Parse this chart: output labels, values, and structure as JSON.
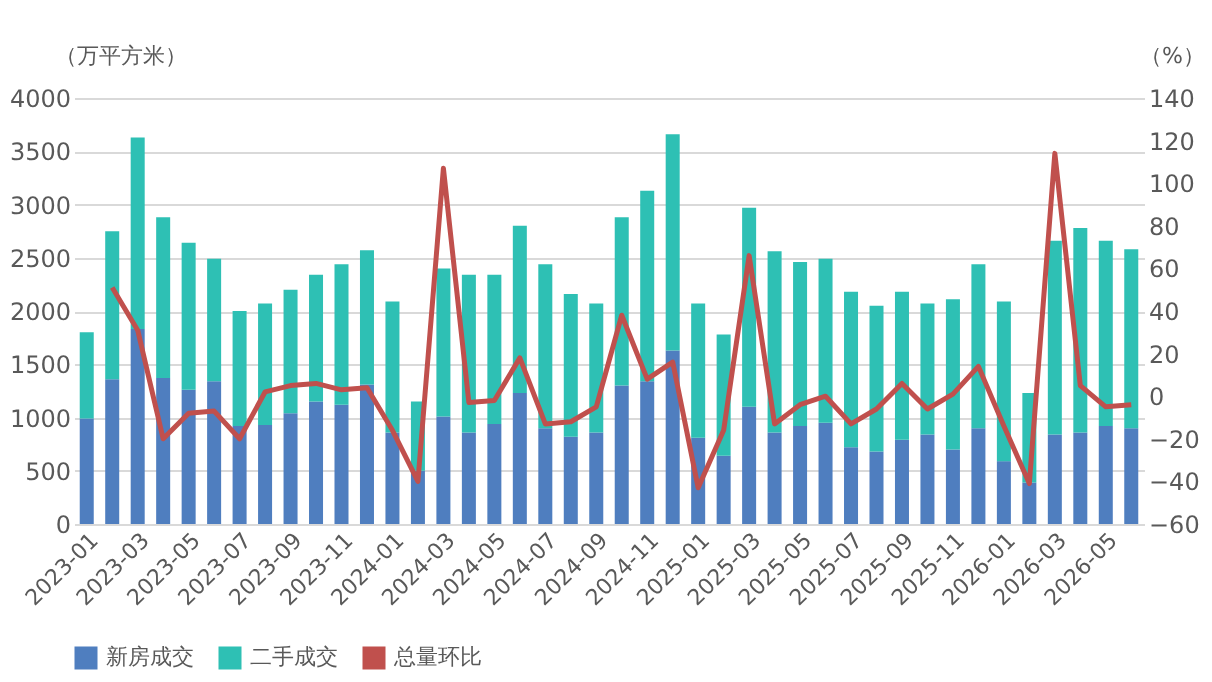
{
  "chart_data": {
    "type": "bar",
    "stacked": true,
    "ylabel": "（万平方米）",
    "y2label": "（%）",
    "categories": [
      "2023-01",
      null,
      "2023-03",
      null,
      "2023-05",
      null,
      "2023-07",
      null,
      "2023-09",
      null,
      "2023-11",
      null,
      "2024-01",
      null,
      "2024-03",
      null,
      "2024-05",
      null,
      "2024-07",
      null,
      "2024-09",
      null,
      "2024-11",
      null,
      "2025-01",
      null,
      "2025-03",
      null,
      "2025-05",
      null,
      "2025-07",
      null,
      "2025-09",
      null,
      "2025-11",
      null,
      "2026-01",
      null,
      "2026-03",
      null,
      "2026-05",
      null
    ],
    "series": [
      {
        "name": "新房成交",
        "color": "#4f7ebf",
        "values": [
          990,
          1360,
          1830,
          1370,
          1260,
          1340,
          920,
          930,
          1040,
          1150,
          1120,
          1310,
          860,
          500,
          1010,
          860,
          940,
          1230,
          900,
          820,
          860,
          1300,
          1340,
          1630,
          810,
          640,
          1100,
          860,
          920,
          950,
          720,
          680,
          790,
          840,
          700,
          900,
          590,
          390,
          840,
          860,
          920,
          900
        ]
      },
      {
        "name": "二手成交",
        "color": "#2ec0b4",
        "values": [
          810,
          1390,
          1800,
          1510,
          1380,
          1150,
          1080,
          1140,
          1160,
          1190,
          1320,
          1260,
          1230,
          650,
          1390,
          1480,
          1400,
          1570,
          1540,
          1340,
          1210,
          1580,
          1790,
          2030,
          1260,
          1140,
          1870,
          1700,
          1540,
          1540,
          1460,
          1370,
          1390,
          1230,
          1410,
          1540,
          1500,
          840,
          1820,
          1920,
          1740,
          1680
        ]
      },
      {
        "name": "总量环比",
        "color": "#c0504d",
        "type": "line",
        "axis": "y2",
        "values": [
          null,
          51,
          31,
          -20,
          -8,
          -7,
          -20,
          2,
          5,
          6,
          3,
          4,
          -16,
          -40,
          107,
          -3,
          -2,
          18,
          -13,
          -12,
          -5,
          38,
          8,
          16,
          -43,
          -16,
          66,
          -13,
          -4,
          0,
          -13,
          -6,
          6,
          -6,
          1,
          14,
          -14,
          -41,
          114,
          5,
          -5,
          -4
        ]
      }
    ],
    "ylim": [
      0,
      4000
    ],
    "yticks": [
      0,
      500,
      1000,
      1500,
      2000,
      2500,
      3000,
      3500,
      4000
    ],
    "y2lim": [
      -60,
      140
    ],
    "y2ticks": [
      -60,
      -40,
      -20,
      0,
      20,
      40,
      60,
      80,
      100,
      120,
      140
    ],
    "grid": "y",
    "legend": "bottom",
    "line_style": "solid",
    "marker": "none"
  }
}
